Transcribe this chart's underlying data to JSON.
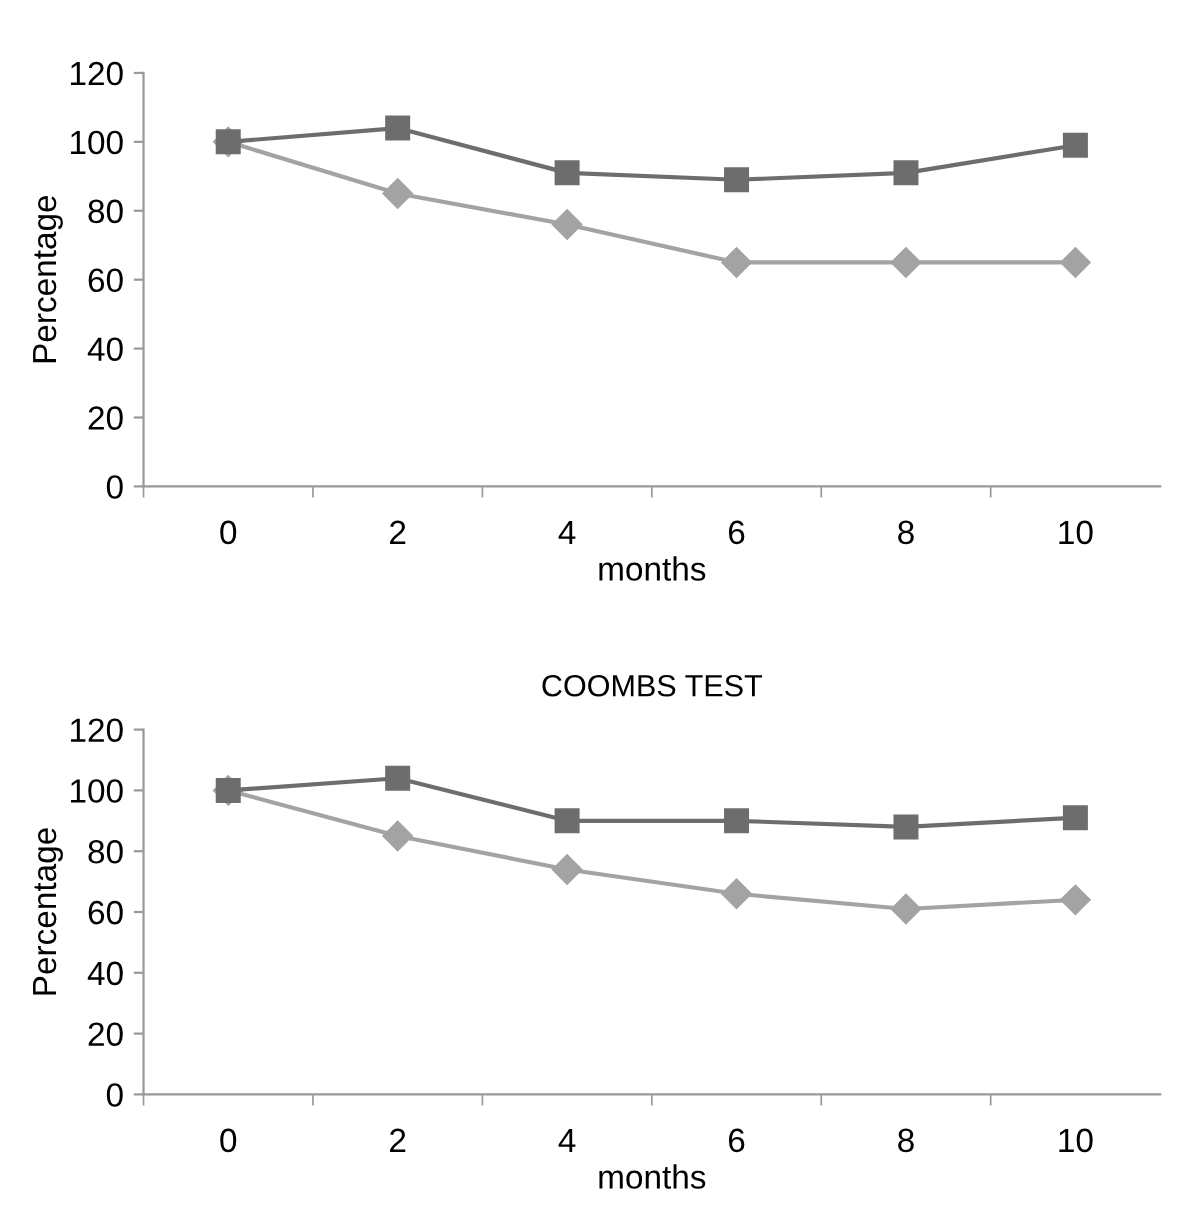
{
  "chart_data": [
    {
      "type": "line",
      "xlabel": "months",
      "ylabel": "Percentage",
      "categories": [
        "0",
        "2",
        "4",
        "6",
        "8",
        "10"
      ],
      "ylim": [
        0,
        120
      ],
      "yticks": [
        0,
        20,
        40,
        60,
        80,
        100,
        120
      ],
      "grid": false,
      "legend": false,
      "series": [
        {
          "color": "#6d6d6d",
          "marker": "square",
          "values": [
            100,
            104,
            91,
            89,
            91,
            99
          ]
        },
        {
          "color": "#a3a3a3",
          "marker": "diamond",
          "values": [
            100,
            85,
            76,
            65,
            65,
            65
          ]
        }
      ]
    },
    {
      "type": "line",
      "title": "COOMBS TEST",
      "xlabel": "months",
      "ylabel": "Percentage",
      "categories": [
        "0",
        "2",
        "4",
        "6",
        "8",
        "10"
      ],
      "ylim": [
        0,
        120
      ],
      "yticks": [
        0,
        20,
        40,
        60,
        80,
        100,
        120
      ],
      "grid": false,
      "legend": false,
      "series": [
        {
          "color": "#6d6d6d",
          "marker": "square",
          "values": [
            100,
            104,
            90,
            90,
            88,
            91
          ]
        },
        {
          "color": "#a3a3a3",
          "marker": "diamond",
          "values": [
            100,
            85,
            74,
            66,
            61,
            64
          ]
        }
      ]
    }
  ]
}
